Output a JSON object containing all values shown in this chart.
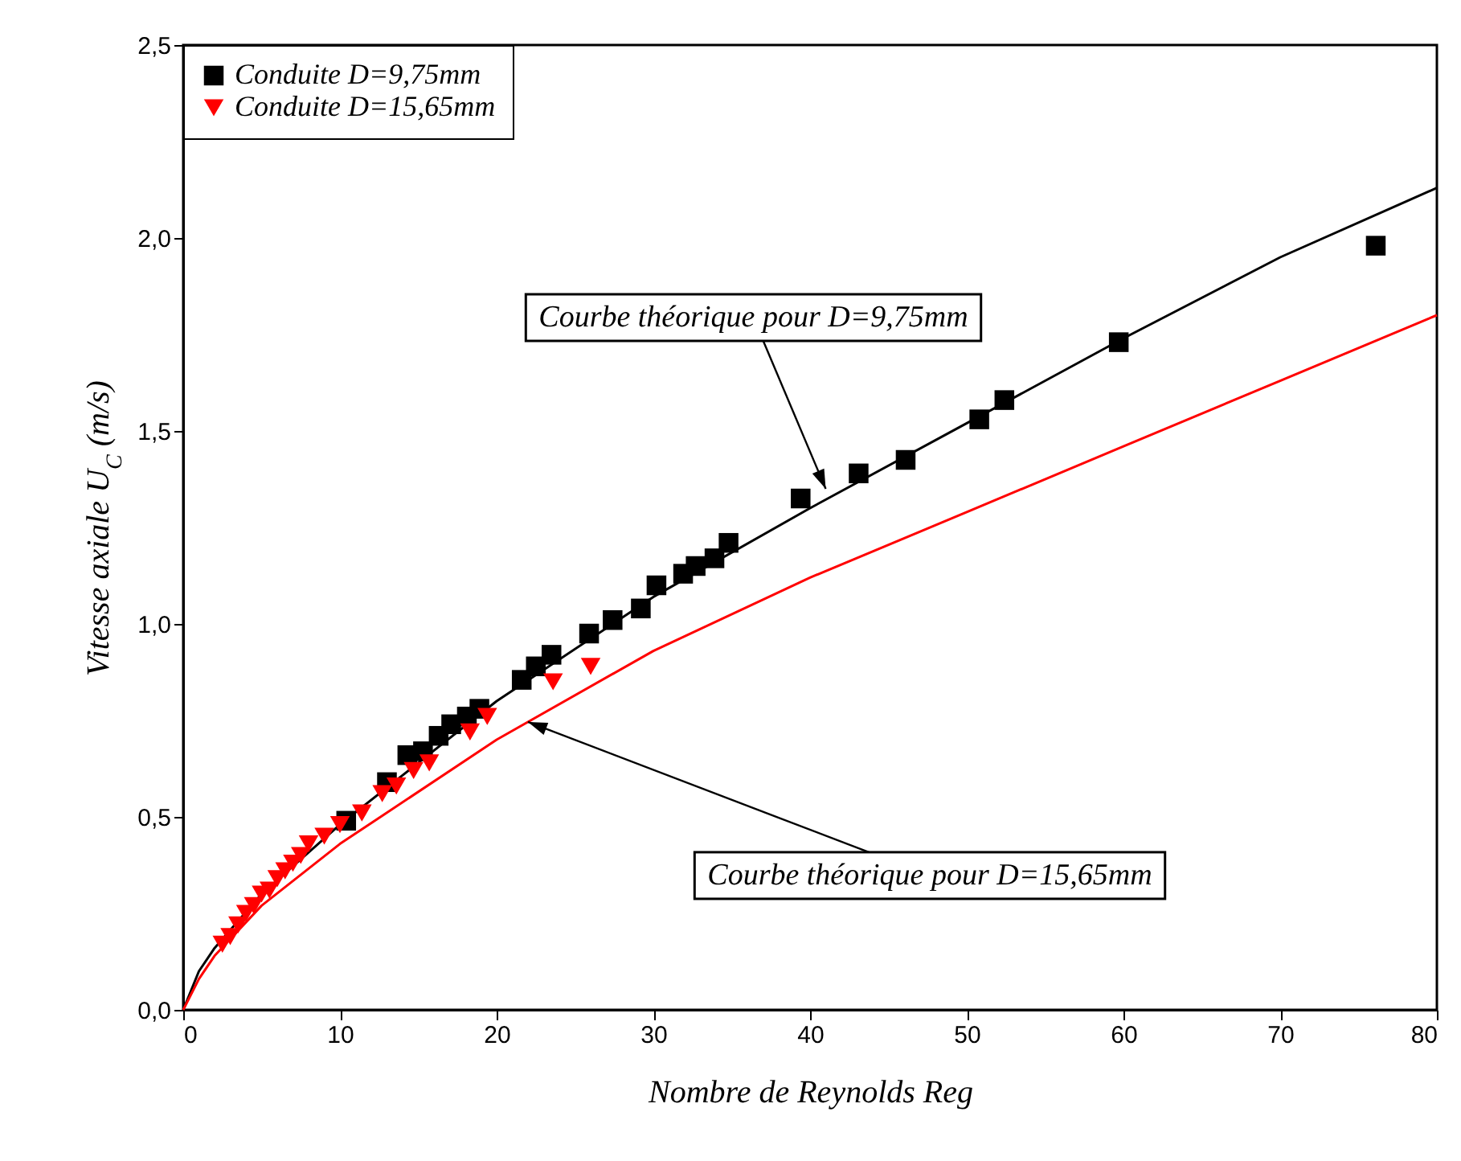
{
  "chart_data": {
    "type": "scatter",
    "xlabel": "Nombre de Reynolds    Reg",
    "ylabel": "Vitesse axiale    U$_{C}$ (m/s)",
    "xlim": [
      0,
      80
    ],
    "xticks": [
      0,
      10,
      20,
      30,
      40,
      50,
      60,
      70,
      80
    ],
    "ylim": [
      0,
      2.5
    ],
    "yticks": [
      {
        "value": 0,
        "label": "0,0"
      },
      {
        "value": 0.5,
        "label": "0,5"
      },
      {
        "value": 1,
        "label": "1,0"
      },
      {
        "value": 1.5,
        "label": "1,5"
      },
      {
        "value": 2,
        "label": "2,0"
      },
      {
        "value": 2.5,
        "label": "2,5"
      }
    ],
    "legend": "top left",
    "grid": false,
    "series": [
      {
        "name": "Conduite D=9,75mm",
        "marker": "square",
        "color": "#000000",
        "x": [
          10.4,
          13.0,
          14.3,
          15.3,
          16.3,
          17.1,
          18.1,
          18.9,
          21.6,
          22.5,
          23.5,
          25.9,
          27.4,
          29.2,
          30.2,
          31.9,
          32.7,
          33.9,
          34.8,
          39.4,
          43.1,
          46.1,
          50.8,
          52.4,
          59.7,
          76.1
        ],
        "values": [
          0.49,
          0.59,
          0.66,
          0.67,
          0.71,
          0.74,
          0.76,
          0.78,
          0.855,
          0.89,
          0.92,
          0.975,
          1.01,
          1.04,
          1.1,
          1.13,
          1.15,
          1.17,
          1.21,
          1.325,
          1.39,
          1.425,
          1.53,
          1.58,
          1.73,
          1.98
        ]
      },
      {
        "name": "Conduite D=15,65mm",
        "marker": "triangle-down",
        "color": "#ff0000",
        "x": [
          2.5,
          3.0,
          3.5,
          4.0,
          4.5,
          5.0,
          5.5,
          6.0,
          6.5,
          7.0,
          7.5,
          8.0,
          9.0,
          10.0,
          11.4,
          12.7,
          13.6,
          14.7,
          15.7,
          18.3,
          19.4,
          23.6,
          26.0
        ],
        "values": [
          0.17,
          0.19,
          0.22,
          0.25,
          0.27,
          0.3,
          0.31,
          0.34,
          0.36,
          0.38,
          0.4,
          0.43,
          0.45,
          0.48,
          0.51,
          0.56,
          0.58,
          0.62,
          0.64,
          0.72,
          0.76,
          0.85,
          0.89
        ]
      },
      {
        "type": "line",
        "color": "#000000",
        "x": [
          0,
          1,
          2,
          5,
          10,
          20,
          30,
          40,
          50,
          60,
          70,
          80
        ],
        "values": [
          0,
          0.1,
          0.16,
          0.3,
          0.48,
          0.8,
          1.07,
          1.3,
          1.52,
          1.74,
          1.95,
          2.13
        ]
      },
      {
        "type": "line",
        "color": "#ff0000",
        "x": [
          0,
          1,
          2,
          5,
          10,
          20,
          30,
          40,
          50,
          60,
          70,
          80
        ],
        "values": [
          0,
          0.08,
          0.14,
          0.27,
          0.43,
          0.7,
          0.93,
          1.12,
          1.29,
          1.46,
          1.63,
          1.8
        ]
      }
    ],
    "annotations": [
      {
        "text": "Courbe théorique pour D=9,75mm",
        "x": 41,
        "y": 1.35
      },
      {
        "text": "Courbe théorique pour D=15,65mm",
        "x": 22,
        "y": 0.746
      }
    ]
  }
}
